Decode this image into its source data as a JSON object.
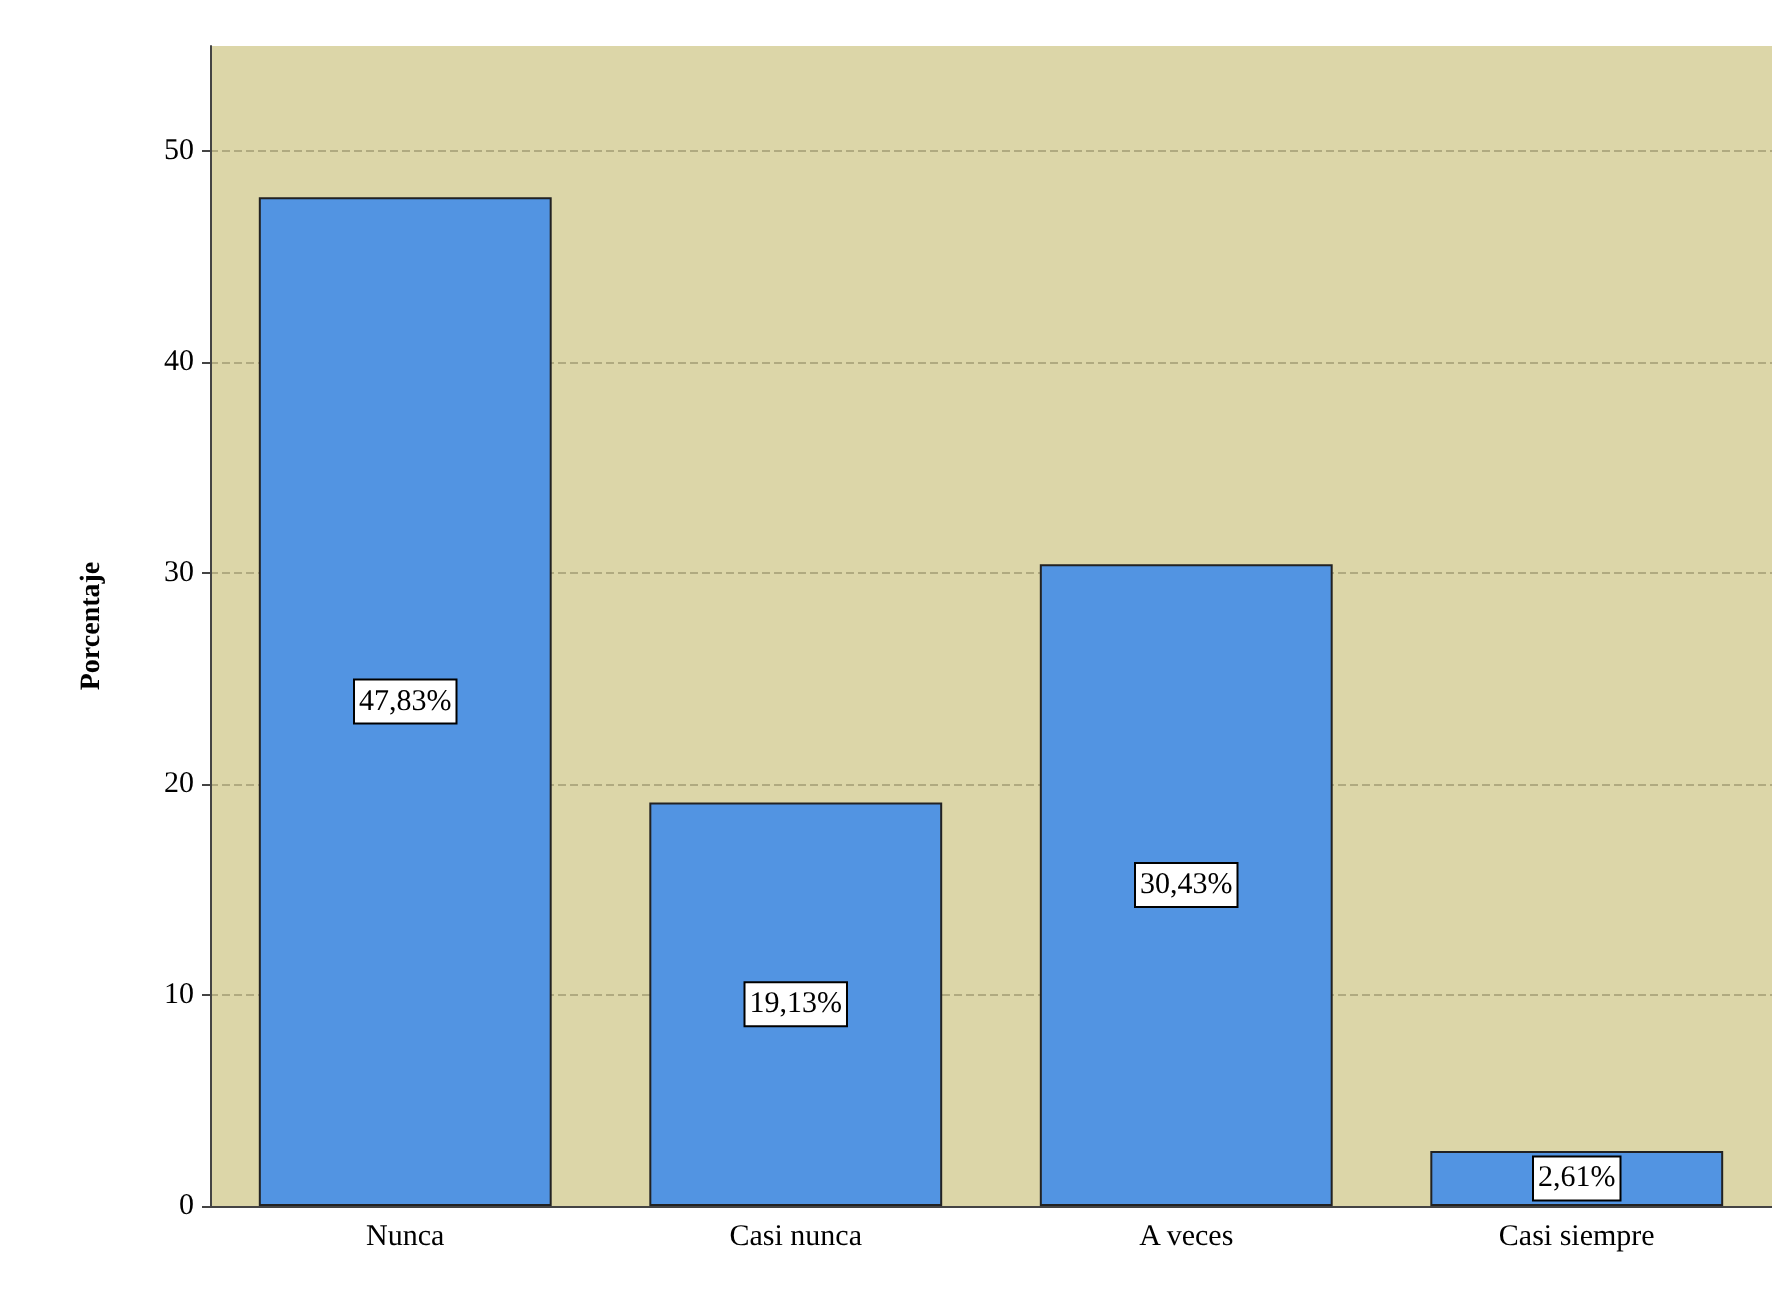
{
  "chart_data": {
    "type": "bar",
    "ylabel": "Porcentaje",
    "categories": [
      "Nunca",
      "Casi nunca",
      "A veces",
      "Casi siempre"
    ],
    "values": [
      47.83,
      19.13,
      30.43,
      2.61
    ],
    "value_labels": [
      "47,83%",
      "19,13%",
      "30,43%",
      "2,61%"
    ],
    "color": "#5294e2",
    "ylim": [
      0,
      55
    ],
    "yticks": [
      0,
      10,
      20,
      30,
      40,
      50
    ],
    "grid": "y"
  }
}
